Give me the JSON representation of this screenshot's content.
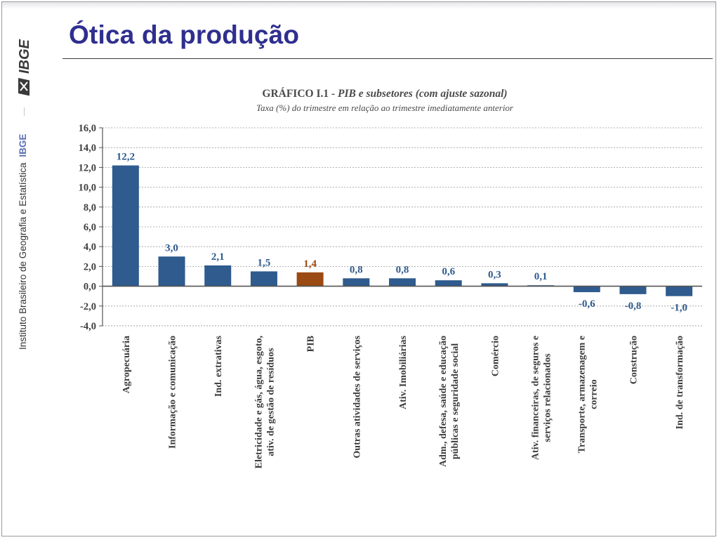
{
  "slide": {
    "title": "Ótica da produção",
    "sidebar": {
      "logo_text": "IBGE",
      "institute": "Instituto Brasileiro de Geografia e Estatística",
      "abbr": "IBGE"
    }
  },
  "colors": {
    "bar": "#2f5b8e",
    "highlight_bar": "#9a4a12",
    "label_bar": "#2f5b8e",
    "label_highlight": "#9a4a12",
    "title": "#2f2f8f"
  },
  "chart_data": {
    "type": "bar",
    "title_prefix": "GRÁFICO I.1 - ",
    "title_italic": "PIB  e subsetores (com ajuste sazonal)",
    "subtitle": "Taxa (%) do trimestre em relação ao trimestre imediatamente anterior",
    "categories": [
      [
        "Agropecuária"
      ],
      [
        "Informação e comunicação"
      ],
      [
        "Ind. extrativas"
      ],
      [
        "Eletricidade e gás, água, esgoto,",
        "ativ. de gestão de resíduos"
      ],
      [
        "PIB"
      ],
      [
        "Outras atividades de serviços"
      ],
      [
        "Ativ. Imobiliárias"
      ],
      [
        "Adm., defesa, saúde e educação",
        "públicas e seguridade social"
      ],
      [
        "Comércio"
      ],
      [
        "Ativ. financeiras, de seguros e",
        "serviços relacionados"
      ],
      [
        "Transporte, armazenagem e",
        "correio"
      ],
      [
        "Construção"
      ],
      [
        "Ind. de transformação"
      ]
    ],
    "values": [
      12.2,
      3.0,
      2.1,
      1.5,
      1.4,
      0.8,
      0.8,
      0.6,
      0.3,
      0.1,
      -0.6,
      -0.8,
      -1.0
    ],
    "data_labels": [
      "12,2",
      "3,0",
      "2,1",
      "1,5",
      "1,4",
      "0,8",
      "0,8",
      "0,6",
      "0,3",
      "0,1",
      "-0,6",
      "-0,8",
      "-1,0"
    ],
    "highlight_category": "PIB",
    "ylim": [
      -4,
      16
    ],
    "yticks": [
      16,
      14,
      12,
      10,
      8,
      6,
      4,
      2,
      0,
      -2,
      -4
    ],
    "ytick_labels": [
      "16,0",
      "14,0",
      "12,0",
      "10,0",
      "8,0",
      "6,0",
      "4,0",
      "2,0",
      "0,0",
      "-2,0",
      "-4,0"
    ],
    "grid": true,
    "legend": "none"
  }
}
